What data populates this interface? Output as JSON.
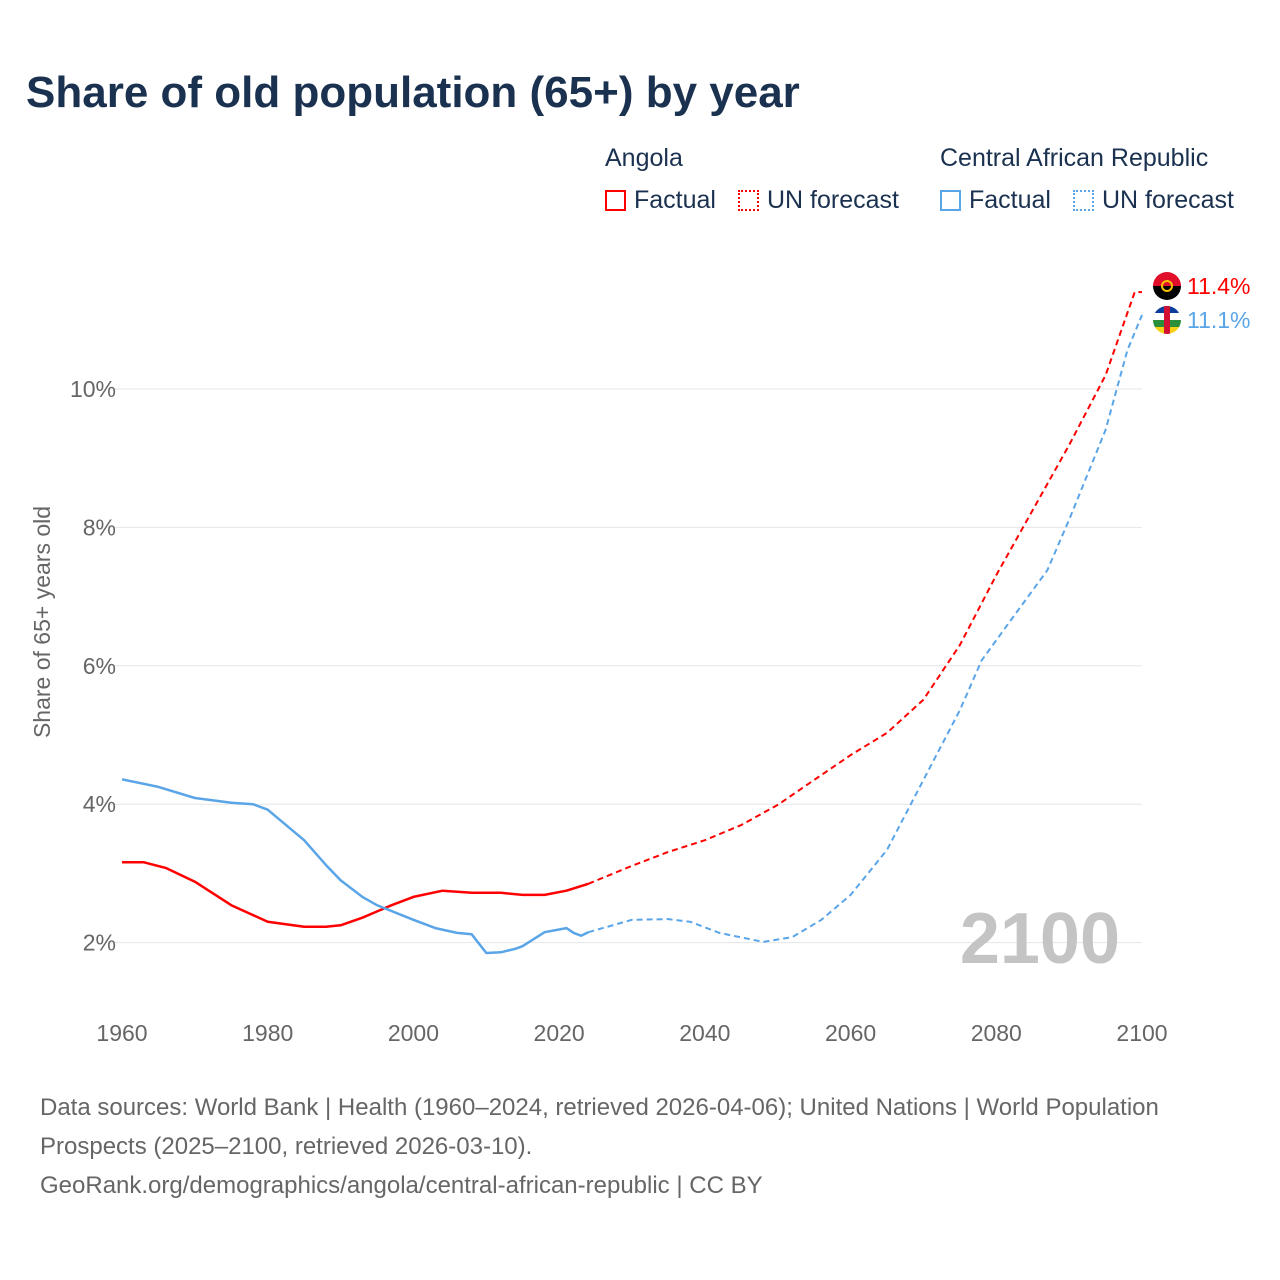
{
  "title": "Share of old population (65+) by year",
  "legend": {
    "groups": [
      {
        "name": "Angola",
        "factual": "Factual",
        "forecast": "UN forecast",
        "color": "#ff0000"
      },
      {
        "name": "Central African Republic",
        "factual": "Factual",
        "forecast": "UN forecast",
        "color": "#5aa5e8"
      }
    ]
  },
  "chart_data": {
    "type": "line",
    "title": "Share of old population (65+) by year",
    "xlabel": "",
    "ylabel": "Share of 65+ years old",
    "xlim": [
      1960,
      2100
    ],
    "ylim": [
      1.2,
      11.8
    ],
    "xticks": [
      "1960",
      "1980",
      "2000",
      "2020",
      "2040",
      "2060",
      "2080",
      "2100"
    ],
    "yticks": [
      {
        "v": 2,
        "label": "2%"
      },
      {
        "v": 4,
        "label": "4%"
      },
      {
        "v": 6,
        "label": "6%"
      },
      {
        "v": 8,
        "label": "8%"
      },
      {
        "v": 10,
        "label": "10%"
      }
    ],
    "year_watermark": "2100",
    "series": [
      {
        "name": "Angola",
        "color": "#ff0000",
        "end_label": "11.4%",
        "factual": [
          [
            1960,
            3.16
          ],
          [
            1963,
            3.16
          ],
          [
            1966,
            3.08
          ],
          [
            1970,
            2.88
          ],
          [
            1975,
            2.54
          ],
          [
            1980,
            2.3
          ],
          [
            1985,
            2.23
          ],
          [
            1988,
            2.23
          ],
          [
            1990,
            2.25
          ],
          [
            1993,
            2.36
          ],
          [
            1997,
            2.54
          ],
          [
            2000,
            2.66
          ],
          [
            2004,
            2.75
          ],
          [
            2008,
            2.72
          ],
          [
            2012,
            2.72
          ],
          [
            2015,
            2.69
          ],
          [
            2018,
            2.69
          ],
          [
            2021,
            2.75
          ],
          [
            2024,
            2.85
          ]
        ],
        "forecast": [
          [
            2024,
            2.85
          ],
          [
            2030,
            3.11
          ],
          [
            2035,
            3.31
          ],
          [
            2040,
            3.48
          ],
          [
            2045,
            3.7
          ],
          [
            2050,
            3.99
          ],
          [
            2055,
            4.35
          ],
          [
            2060,
            4.71
          ],
          [
            2065,
            5.03
          ],
          [
            2070,
            5.51
          ],
          [
            2075,
            6.3
          ],
          [
            2080,
            7.31
          ],
          [
            2085,
            8.25
          ],
          [
            2090,
            9.19
          ],
          [
            2095,
            10.2
          ],
          [
            2099,
            11.4
          ],
          [
            2100,
            11.4
          ]
        ]
      },
      {
        "name": "Central African Republic",
        "color": "#5aa5e8",
        "end_label": "11.1%",
        "factual": [
          [
            1960,
            4.36
          ],
          [
            1965,
            4.25
          ],
          [
            1970,
            4.09
          ],
          [
            1975,
            4.02
          ],
          [
            1978,
            4.0
          ],
          [
            1980,
            3.92
          ],
          [
            1985,
            3.48
          ],
          [
            1988,
            3.12
          ],
          [
            1990,
            2.9
          ],
          [
            1993,
            2.66
          ],
          [
            1995,
            2.54
          ],
          [
            2000,
            2.33
          ],
          [
            2003,
            2.21
          ],
          [
            2006,
            2.14
          ],
          [
            2008,
            2.12
          ],
          [
            2010,
            1.85
          ],
          [
            2012,
            1.86
          ],
          [
            2014,
            1.91
          ],
          [
            2015,
            1.95
          ],
          [
            2018,
            2.15
          ],
          [
            2021,
            2.21
          ],
          [
            2022,
            2.14
          ],
          [
            2023,
            2.1
          ],
          [
            2024,
            2.15
          ]
        ],
        "forecast": [
          [
            2024,
            2.15
          ],
          [
            2030,
            2.33
          ],
          [
            2035,
            2.34
          ],
          [
            2038,
            2.3
          ],
          [
            2042,
            2.14
          ],
          [
            2048,
            2.01
          ],
          [
            2052,
            2.08
          ],
          [
            2056,
            2.33
          ],
          [
            2060,
            2.69
          ],
          [
            2065,
            3.34
          ],
          [
            2070,
            4.35
          ],
          [
            2075,
            5.36
          ],
          [
            2078,
            6.08
          ],
          [
            2082,
            6.66
          ],
          [
            2087,
            7.38
          ],
          [
            2090,
            8.11
          ],
          [
            2095,
            9.41
          ],
          [
            2098,
            10.56
          ],
          [
            2100,
            11.07
          ]
        ]
      }
    ]
  },
  "source": {
    "line1": "Data sources: World Bank | Health (1960–2024, retrieved 2026-04-06); United Nations | World Population Prospects (2025–2100, retrieved 2026-03-10).",
    "line2": "GeoRank.org/demographics/angola/central-african-republic | CC BY"
  }
}
